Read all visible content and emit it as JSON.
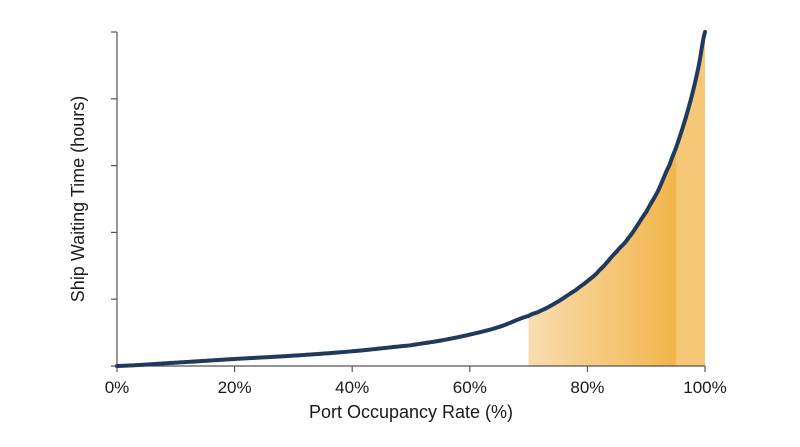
{
  "chart_data": {
    "type": "area",
    "title": "",
    "xlabel": "Port Occupancy Rate (%)",
    "ylabel": "Ship Waiting Time (hours)",
    "xlim": [
      0,
      100
    ],
    "ylim": [
      0,
      100
    ],
    "x_ticks": [
      0,
      20,
      40,
      60,
      80,
      100
    ],
    "x_tick_labels": [
      "0%",
      "20%",
      "40%",
      "60%",
      "80%",
      "100%"
    ],
    "y_ticks": [
      0,
      20,
      40,
      60,
      80,
      100
    ],
    "y_tick_labels": [],
    "grid": false,
    "series": [
      {
        "x": [
          0,
          10,
          20,
          30,
          40,
          50,
          55,
          60,
          65,
          70,
          72,
          75,
          78,
          80,
          82,
          85,
          87,
          90,
          92,
          94,
          95,
          96,
          97,
          98,
          99,
          100
        ],
        "y": [
          0,
          1.0,
          2.1,
          3.1,
          4.4,
          6.2,
          7.6,
          9.4,
          11.7,
          15.0,
          16.5,
          19.3,
          22.7,
          25.4,
          28.6,
          34.3,
          38.4,
          46.1,
          52.4,
          60.3,
          65.0,
          70.2,
          76.0,
          82.6,
          90.5,
          100
        ]
      }
    ],
    "highlight_region": {
      "x_start": 70,
      "x_peak": 95,
      "x_end": 100
    },
    "colors": {
      "line": "#1f3a5c",
      "fill_light": "#f9ddb0",
      "fill_dark": "#f2b54a",
      "fill_end": "#f5c777",
      "axis": "#555555"
    }
  }
}
